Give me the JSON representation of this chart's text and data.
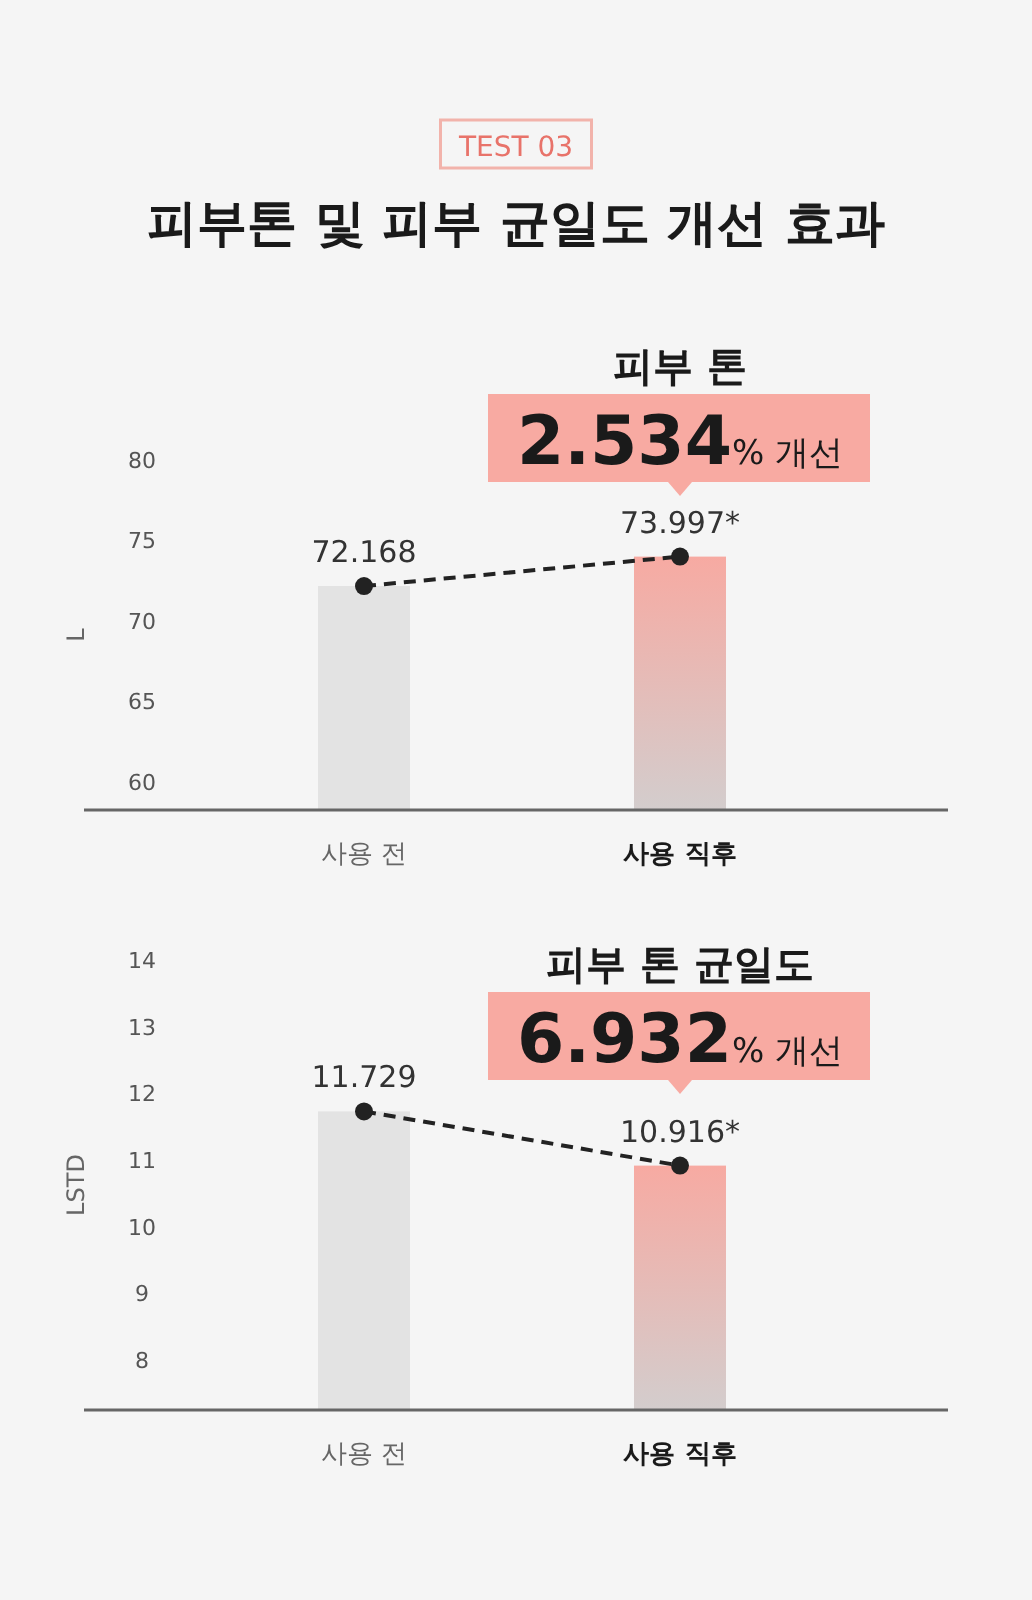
{
  "chart_data": [
    {
      "type": "bar",
      "title": "피부 톤",
      "ylabel": "L",
      "categories": [
        "사용 전",
        "사용 직후"
      ],
      "ylim": [
        58.25,
        80
      ],
      "yticks": [
        60,
        65,
        70,
        75,
        80
      ],
      "marker": "circle",
      "line_style": "dashed",
      "grid": false,
      "series": [
        {
          "type": "bar",
          "colors": [
            "#e3e3e3",
            "#f7aaa2"
          ],
          "values": [
            72.168,
            73.997
          ]
        },
        {
          "type": "line",
          "color": "#222222",
          "values": [
            72.168,
            73.997
          ],
          "value_labels": [
            "72.168",
            "73.997*"
          ]
        }
      ],
      "annotations": [
        "TEST 03",
        "피부톤 및 피부 균일도 개선 효과",
        "2.534% 개선"
      ]
    },
    {
      "type": "bar",
      "title": "피부 톤 균일도",
      "ylabel": "LSTD",
      "categories": [
        "사용 전",
        "사용 직후"
      ],
      "ylim": [
        7.25,
        14
      ],
      "yticks": [
        8,
        9,
        10,
        11,
        12,
        13,
        14
      ],
      "marker": "circle",
      "line_style": "dashed",
      "grid": false,
      "series": [
        {
          "type": "bar",
          "colors": [
            "#e3e3e3",
            "#f7aaa2"
          ],
          "values": [
            11.729,
            10.916
          ]
        },
        {
          "type": "line",
          "color": "#222222",
          "values": [
            11.729,
            10.916
          ],
          "value_labels": [
            "11.729",
            "10.916*"
          ]
        }
      ],
      "annotations": [
        "6.932% 개선"
      ]
    }
  ]
}
